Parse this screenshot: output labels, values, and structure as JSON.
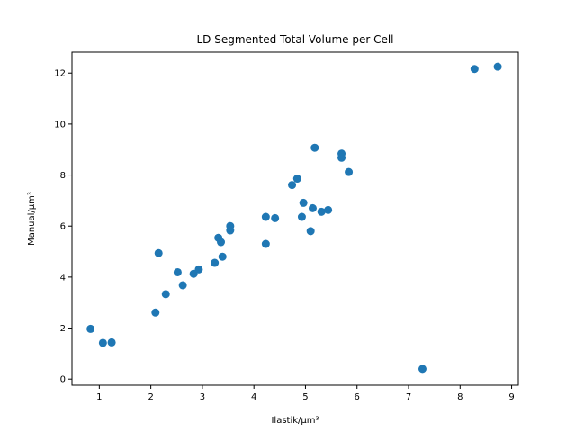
{
  "chart_data": {
    "type": "scatter",
    "title": "LD Segmented Total Volume per Cell",
    "xlabel": "Ilastik/μm³",
    "ylabel": "Manual/μm³",
    "xlim": [
      0.47,
      9.13
    ],
    "ylim": [
      -0.24,
      12.82
    ],
    "xticks": [
      1,
      2,
      3,
      4,
      5,
      6,
      7,
      8,
      9
    ],
    "yticks": [
      0,
      2,
      4,
      6,
      8,
      10,
      12
    ],
    "grid": false,
    "marker_color": "#1f77b4",
    "points": [
      {
        "x": 0.83,
        "y": 1.97
      },
      {
        "x": 1.07,
        "y": 1.42
      },
      {
        "x": 1.24,
        "y": 1.44
      },
      {
        "x": 2.09,
        "y": 2.61
      },
      {
        "x": 2.15,
        "y": 4.94
      },
      {
        "x": 2.29,
        "y": 3.33
      },
      {
        "x": 2.52,
        "y": 4.19
      },
      {
        "x": 2.62,
        "y": 3.68
      },
      {
        "x": 2.83,
        "y": 4.13
      },
      {
        "x": 2.93,
        "y": 4.3
      },
      {
        "x": 3.24,
        "y": 4.56
      },
      {
        "x": 3.31,
        "y": 5.54
      },
      {
        "x": 3.36,
        "y": 5.37
      },
      {
        "x": 3.39,
        "y": 4.8
      },
      {
        "x": 3.54,
        "y": 6.0
      },
      {
        "x": 3.54,
        "y": 5.83
      },
      {
        "x": 4.23,
        "y": 6.36
      },
      {
        "x": 4.23,
        "y": 5.3
      },
      {
        "x": 4.41,
        "y": 6.31
      },
      {
        "x": 4.74,
        "y": 7.61
      },
      {
        "x": 4.84,
        "y": 7.86
      },
      {
        "x": 4.93,
        "y": 6.36
      },
      {
        "x": 4.96,
        "y": 6.91
      },
      {
        "x": 5.1,
        "y": 5.8
      },
      {
        "x": 5.14,
        "y": 6.7
      },
      {
        "x": 5.18,
        "y": 9.07
      },
      {
        "x": 5.31,
        "y": 6.56
      },
      {
        "x": 5.44,
        "y": 6.63
      },
      {
        "x": 5.7,
        "y": 8.84
      },
      {
        "x": 5.7,
        "y": 8.68
      },
      {
        "x": 5.84,
        "y": 8.12
      },
      {
        "x": 7.27,
        "y": 0.4
      },
      {
        "x": 8.28,
        "y": 12.16
      },
      {
        "x": 8.73,
        "y": 12.25
      }
    ]
  }
}
